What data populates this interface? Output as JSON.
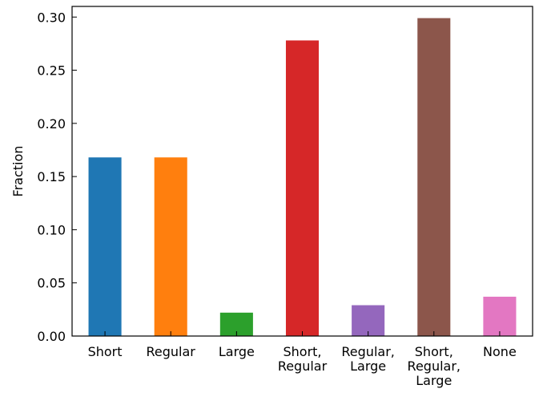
{
  "chart_data": {
    "type": "bar",
    "ylabel": "Fraction",
    "xlabel": "",
    "ylim": [
      0,
      0.31
    ],
    "yticks": [
      "0.00",
      "0.05",
      "0.10",
      "0.15",
      "0.20",
      "0.25",
      "0.30"
    ],
    "categories": [
      [
        "Short"
      ],
      [
        "Regular"
      ],
      [
        "Large"
      ],
      [
        "Short,",
        "Regular"
      ],
      [
        "Regular,",
        "Large"
      ],
      [
        "Short,",
        "Regular,",
        "Large"
      ],
      [
        "None"
      ]
    ],
    "values": [
      0.168,
      0.168,
      0.022,
      0.278,
      0.029,
      0.299,
      0.037
    ],
    "colors": [
      "#1f77b4",
      "#ff7f0e",
      "#2ca02c",
      "#d62728",
      "#9467bd",
      "#8c564b",
      "#e377c2"
    ],
    "grid": false
  }
}
